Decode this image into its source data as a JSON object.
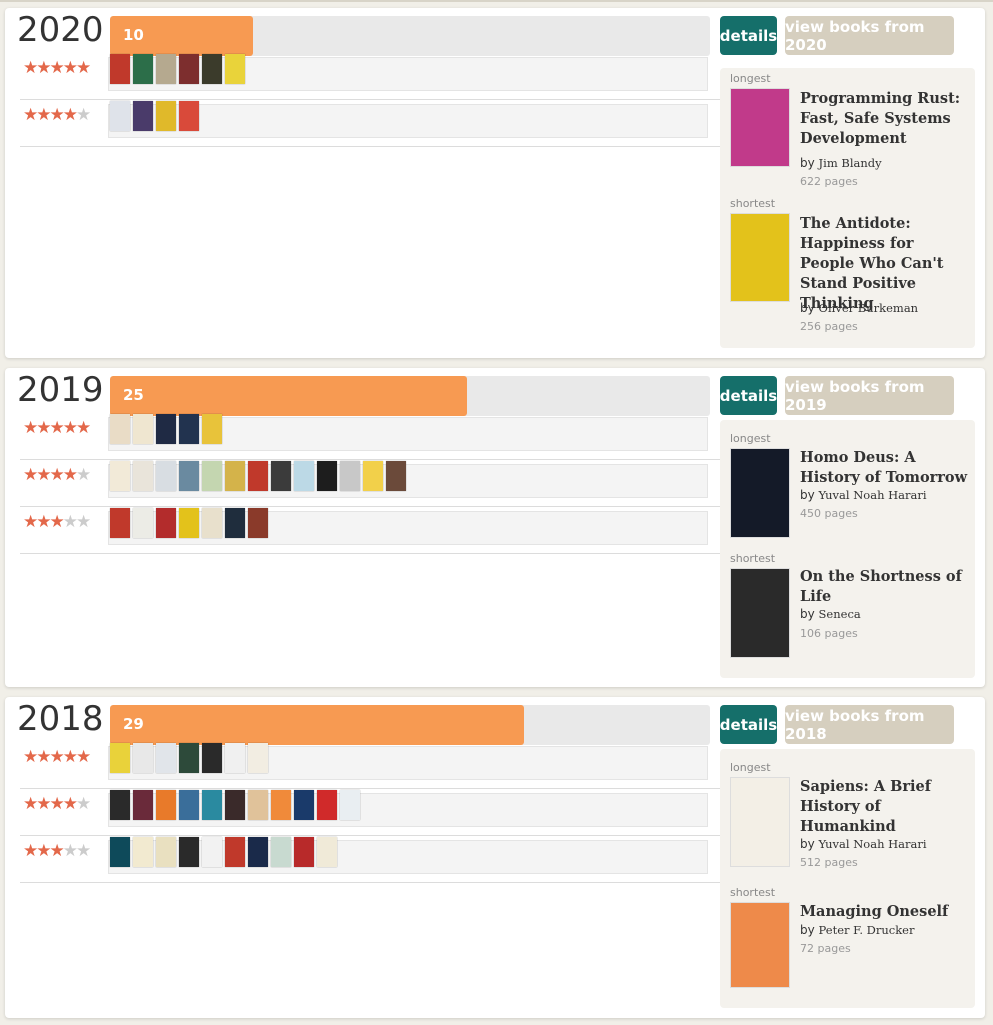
{
  "years": [
    {
      "year": "2020",
      "count": "10",
      "count_value": 10,
      "details_label": "details",
      "view_label": "view books from 2020",
      "ratings": [
        {
          "stars": 5,
          "covers": [
            "#c0392b",
            "#2c6e49",
            "#b5a98f",
            "#7d2e2e",
            "#3b3b2b",
            "#e9d33a"
          ]
        },
        {
          "stars": 4,
          "covers": [
            "#dfe3ea",
            "#4a3b6a",
            "#e0b92a",
            "#d94a3a"
          ]
        }
      ],
      "longest": {
        "label": "longest",
        "title": "Programming Rust: Fast, Safe Systems Development",
        "by": "by",
        "author": "Jim Blandy",
        "pages": "622 pages",
        "cover_color": "#c13a8a"
      },
      "shortest": {
        "label": "shortest",
        "title": "The Antidote: Happiness for People Who Can't Stand Positive Thinking",
        "by": "by",
        "author": "Oliver Burkeman",
        "pages": "256 pages",
        "cover_color": "#e3c21b"
      }
    },
    {
      "year": "2019",
      "count": "25",
      "count_value": 25,
      "details_label": "details",
      "view_label": "view books from 2019",
      "ratings": [
        {
          "stars": 5,
          "covers": [
            "#e9dcc6",
            "#efe6d0",
            "#1f2a44",
            "#22334f",
            "#e8c33a"
          ]
        },
        {
          "stars": 4,
          "covers": [
            "#f2ead8",
            "#e9e4da",
            "#d8dde2",
            "#6a8aa0",
            "#c4d6b0",
            "#d4b34a",
            "#c0392b",
            "#3b3b3b",
            "#bcd9e6",
            "#1d1d1d",
            "#c8c8c8",
            "#f2d04a",
            "#6b4a3a"
          ]
        },
        {
          "stars": 3,
          "covers": [
            "#c0392b",
            "#ecece6",
            "#b32c2c",
            "#e3c21b",
            "#e8e0cc",
            "#1f2d3d",
            "#8a3a2a"
          ]
        }
      ],
      "longest": {
        "label": "longest",
        "title": "Homo Deus: A History of Tomorrow",
        "by": "by",
        "author": "Yuval Noah Harari",
        "pages": "450 pages",
        "cover_color": "#141a28"
      },
      "shortest": {
        "label": "shortest",
        "title": "On the Shortness of Life",
        "by": "by",
        "author": "Seneca",
        "pages": "106 pages",
        "cover_color": "#2a2a2a"
      }
    },
    {
      "year": "2018",
      "count": "29",
      "count_value": 29,
      "details_label": "details",
      "view_label": "view books from 2018",
      "ratings": [
        {
          "stars": 5,
          "covers": [
            "#e9d23a",
            "#e8e8e8",
            "#e1e5ea",
            "#2d4a3a",
            "#2a2a2a",
            "#f0f0f0",
            "#f2ede2"
          ]
        },
        {
          "stars": 4,
          "covers": [
            "#2a2a2a",
            "#6a2a3a",
            "#e87a2a",
            "#3a6e9a",
            "#2a8aa0",
            "#3a2a2a",
            "#e0c29a",
            "#f08a3a",
            "#1a3a6a",
            "#d02a2a",
            "#e9eef2"
          ]
        },
        {
          "stars": 3,
          "covers": [
            "#0e4a5a",
            "#f2ead0",
            "#e9e0c0",
            "#2a2a2a",
            "#f2f2f2",
            "#c0392b",
            "#1a2a4a",
            "#c8dad0",
            "#b82a2a",
            "#f0ead8"
          ]
        }
      ],
      "longest": {
        "label": "longest",
        "title": "Sapiens: A Brief History of Humankind",
        "by": "by",
        "author": "Yuval Noah Harari",
        "pages": "512 pages",
        "cover_color": "#f3efe6"
      },
      "shortest": {
        "label": "shortest",
        "title": "Managing Oneself",
        "by": "by",
        "author": "Peter F. Drucker",
        "pages": "72 pages",
        "cover_color": "#ee8a4a"
      }
    }
  ],
  "max_count": 42,
  "colors": {
    "bar_fill": "#f79a52",
    "details_button": "#156f6a",
    "view_button": "#d6cfbf",
    "star_on": "#e3684a",
    "star_off": "#cccccc"
  }
}
